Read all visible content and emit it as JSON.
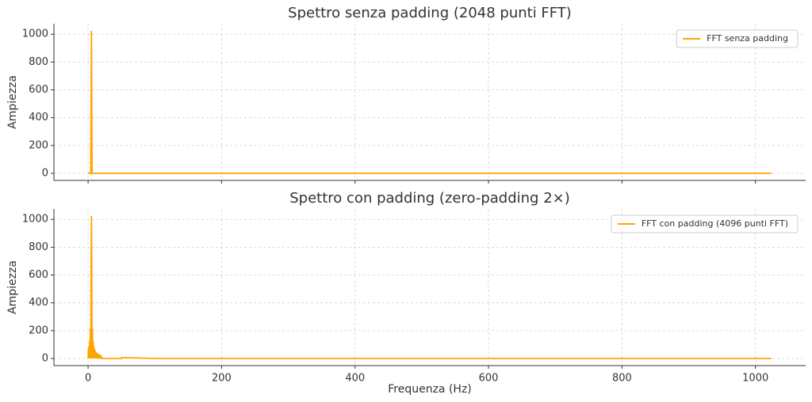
{
  "chart_data": [
    {
      "type": "line",
      "title": "Spettro senza padding (2048 punti FFT)",
      "y_label": "Ampiezza",
      "x": [
        0,
        1,
        2,
        3,
        4,
        5,
        6,
        7,
        8,
        9,
        10,
        1024
      ],
      "series": [
        {
          "name": "FFT senza padding",
          "color": "#ffa500",
          "values": [
            0,
            0,
            0,
            0,
            0,
            1024,
            0,
            0,
            0,
            0,
            0,
            0
          ]
        }
      ],
      "xlim": [
        -51.2,
        1075.2
      ],
      "ylim": [
        -51.2,
        1075.2
      ],
      "xticks": [
        0,
        200,
        400,
        600,
        800,
        1000
      ],
      "yticks": [
        0,
        200,
        400,
        600,
        800,
        1000
      ],
      "grid": true,
      "legend": "upper right"
    },
    {
      "type": "line",
      "title": "Spettro con padding (zero-padding 2×)",
      "y_label": "Ampiezza",
      "x_label": "Frequenza (Hz)",
      "x": [
        0,
        0.5,
        1,
        1.5,
        2,
        2.5,
        3,
        3.5,
        4,
        4.5,
        5,
        5.5,
        6,
        6.5,
        7,
        7.5,
        8,
        8.5,
        9,
        9.5,
        10,
        10.5,
        11,
        11.5,
        12,
        12.5,
        13,
        13.5,
        14,
        14.5,
        15,
        15.5,
        16,
        16.5,
        17,
        17.5,
        18,
        18.5,
        19,
        19.5,
        20,
        50,
        50.5,
        100,
        1024
      ],
      "series": [
        {
          "name": "FFT con padding (4096 punti FFT)",
          "color": "#ffa500",
          "values": [
            0,
            72,
            0,
            93,
            0,
            130,
            0,
            217,
            0,
            652,
            1024,
            652,
            0,
            217,
            0,
            130,
            0,
            93,
            0,
            72,
            0,
            59,
            0,
            50,
            0,
            43,
            0,
            38,
            0,
            34,
            0,
            31,
            0,
            28,
            0,
            26,
            0,
            24,
            0,
            22,
            0,
            0,
            7,
            0,
            0
          ]
        }
      ],
      "xlim": [
        -51.2,
        1075.2
      ],
      "ylim": [
        -51.2,
        1075.2
      ],
      "xticks": [
        0,
        200,
        400,
        600,
        800,
        1000
      ],
      "yticks": [
        0,
        200,
        400,
        600,
        800,
        1000
      ],
      "grid": true,
      "legend": "upper right"
    }
  ]
}
